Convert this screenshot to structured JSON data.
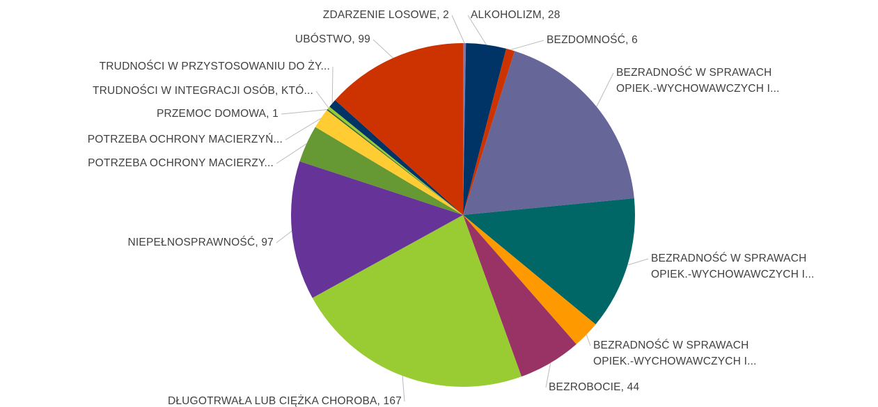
{
  "chart_data": {
    "type": "pie",
    "labels": [
      [
        "ZDARZENIE LOSOWE, 2"
      ],
      [
        "ALKOHOLIZM, 28"
      ],
      [
        "BEZDOMNOŚĆ, 6"
      ],
      [
        "BEZRADNOŚĆ W SPRAWACH",
        "OPIEK.-WYCHOWAWCZYCH I..."
      ],
      [
        "BEZRADNOŚĆ W SPRAWACH",
        "OPIEK.-WYCHOWAWCZYCH I..."
      ],
      [
        "BEZRADNOŚĆ W SPRAWACH",
        "OPIEK.-WYCHOWAWCZYCH I..."
      ],
      [
        "BEZROBOCIE, 44"
      ],
      [
        "DŁUGOTRWAŁA LUB CIĘŻKA CHOROBA, 167"
      ],
      [
        "NIEPEŁNOSPRAWNOŚĆ, 97"
      ],
      [
        "POTRZEBA OCHRONY MACIERZY..."
      ],
      [
        "POTRZEBA OCHRONY MACIERZYŃ..."
      ],
      [
        "PRZEMOC DOMOWA, 1"
      ],
      [
        "TRUDNOŚCI W INTEGRACJI OSÓB, KTÓ..."
      ],
      [
        "TRUDNOŚCI W PRZYSTOSOWANIU DO ŻY..."
      ],
      [
        "UBÓSTWO, 99"
      ]
    ],
    "values": [
      2,
      28,
      6,
      138,
      93,
      19,
      44,
      167,
      97,
      26,
      14,
      1,
      2,
      6,
      99
    ],
    "colors": [
      "#7f77a8",
      "#003366",
      "#cc3300",
      "#666699",
      "#006666",
      "#ff9900",
      "#993366",
      "#99cc33",
      "#663399",
      "#669933",
      "#ffcc33",
      "#336633",
      "#99cc33",
      "#003366",
      "#cc3300"
    ]
  }
}
